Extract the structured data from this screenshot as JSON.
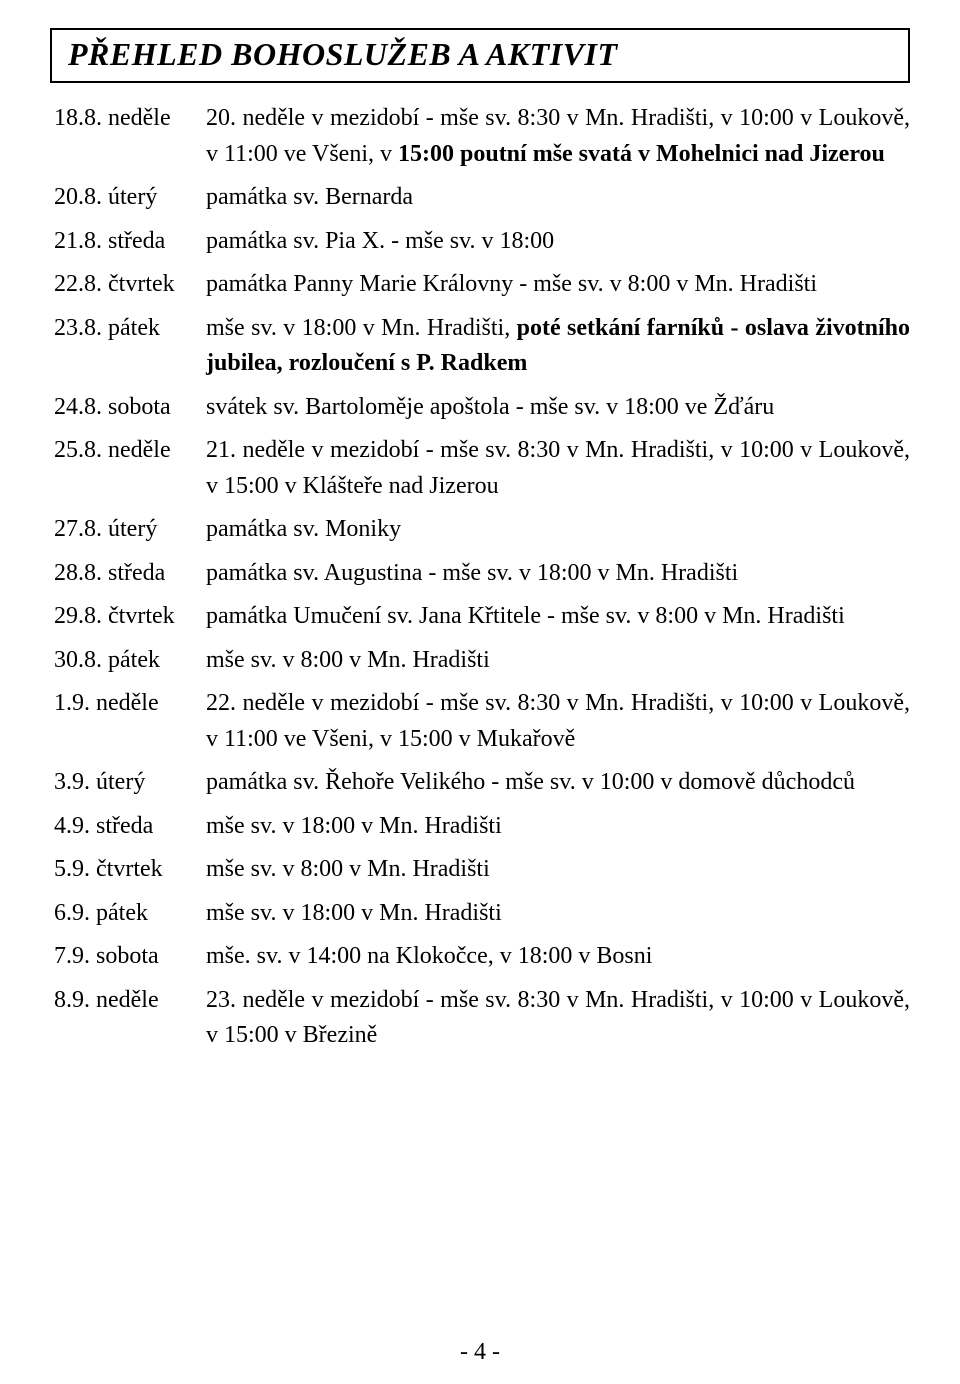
{
  "title": "PŘEHLED BOHOSLUŽEB A AKTIVIT",
  "page_number": "- 4 -",
  "rows": [
    {
      "date": "18.8. neděle",
      "desc_html": "20. neděle v mezidobí - mše sv. 8:30 v Mn. Hradišti, v 10:00 v Loukově, v 11:00 ve Všeni, v <b>15:00 poutní mše svatá v Mohelnici nad Jizerou</b>"
    },
    {
      "date": "20.8. úterý",
      "desc_html": "památka sv. Bernarda"
    },
    {
      "date": "21.8. středa",
      "desc_html": "památka sv. Pia X. - mše sv. v 18:00"
    },
    {
      "date": "22.8. čtvrtek",
      "desc_html": "památka Panny Marie Královny - mše sv. v 8:00 v Mn. Hradišti"
    },
    {
      "date": "23.8. pátek",
      "desc_html": "mše sv. v 18:00 v Mn. Hradišti, <b>poté setkání farníků - oslava životního jubilea, rozloučení s P. Radkem</b>"
    },
    {
      "date": "24.8. sobota",
      "desc_html": "svátek sv. Bartoloměje apoštola - mše sv. v 18:00 ve Žďáru"
    },
    {
      "date": "25.8. neděle",
      "desc_html": "21. neděle v mezidobí - mše sv. 8:30 v Mn. Hradišti, v 10:00 v Loukově, v 15:00 v Klášteře nad Jizerou"
    },
    {
      "date": "27.8. úterý",
      "desc_html": "památka sv. Moniky"
    },
    {
      "date": "28.8. středa",
      "desc_html": "památka sv. Augustina - mše sv. v 18:00 v Mn. Hradišti"
    },
    {
      "date": "29.8. čtvrtek",
      "desc_html": "památka Umučení sv. Jana Křtitele - mše sv. v 8:00 v Mn. Hradišti"
    },
    {
      "date": "30.8. pátek",
      "desc_html": "mše sv. v 8:00 v Mn. Hradišti"
    },
    {
      "date": "1.9. neděle",
      "desc_html": "22. neděle v mezidobí - mše sv. 8:30 v Mn. Hradišti, v 10:00 v Loukově, v 11:00 ve Všeni, v 15:00 v Mukařově"
    },
    {
      "date": "3.9. úterý",
      "desc_html": "památka sv. Řehoře Velikého - mše sv. v 10:00 v domově důchodců"
    },
    {
      "date": "4.9. středa",
      "desc_html": "mše sv. v 18:00 v Mn. Hradišti"
    },
    {
      "date": "5.9. čtvrtek",
      "desc_html": "mše sv. v 8:00 v Mn. Hradišti"
    },
    {
      "date": "6.9. pátek",
      "desc_html": "mše sv. v 18:00 v Mn. Hradišti"
    },
    {
      "date": "7.9. sobota",
      "desc_html": "mše. sv. v 14:00 na Klokočce, v 18:00 v Bosni"
    },
    {
      "date": "8.9. neděle",
      "desc_html": "23. neděle v mezidobí - mše sv. 8:30 v Mn. Hradišti, v 10:00 v Loukově, v 15:00 v Březině"
    }
  ]
}
